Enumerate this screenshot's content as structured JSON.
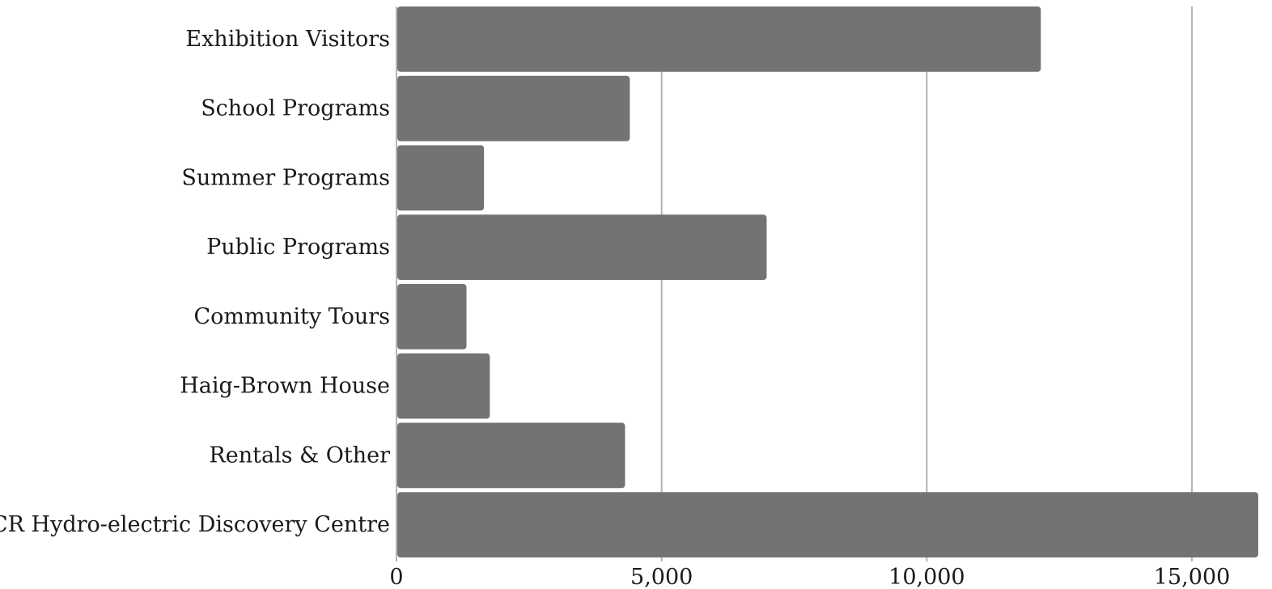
{
  "chart_data": {
    "type": "bar",
    "orientation": "horizontal",
    "categories": [
      "Exhibition Visitors",
      "School Programs",
      "Summer Programs",
      "Public Programs",
      "Community Tours",
      "Haig-Brown House",
      "Rentals & Other",
      "CR Hydro-electric Discovery Centre"
    ],
    "values": [
      12150,
      4400,
      1650,
      6980,
      1320,
      1760,
      4310,
      16250
    ],
    "xlim": [
      0,
      16250
    ],
    "x_ticks": [
      0,
      5000,
      10000,
      15000
    ],
    "x_tick_labels": [
      "0",
      "5,000",
      "10,000",
      "15,000"
    ],
    "bar_color": "#737373",
    "grid": "vertical",
    "legend": "none",
    "title": "",
    "xlabel": "",
    "ylabel": ""
  }
}
